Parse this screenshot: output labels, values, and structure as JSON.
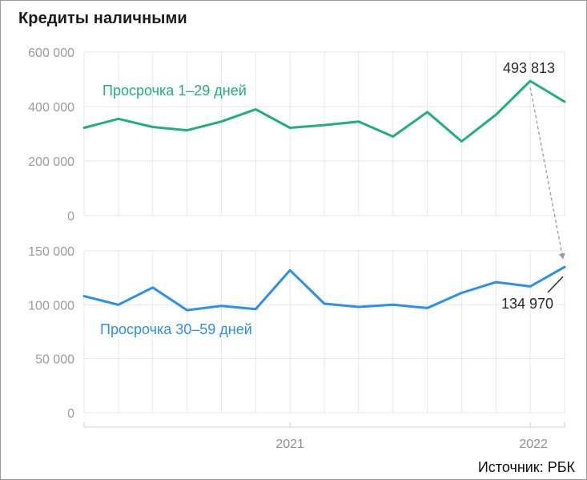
{
  "title": "Кредиты наличными",
  "source": "Источник: РБК",
  "colors": {
    "green": "#1fb07a",
    "blue": "#2b8ff0",
    "grid": "#e6e6e6",
    "ticks": "#9b9b9b"
  },
  "chart_data": [
    {
      "type": "line",
      "x": [
        1,
        2,
        3,
        4,
        5,
        6,
        7,
        8,
        9,
        10,
        11,
        12,
        13,
        14,
        15
      ],
      "series": [
        {
          "name": "Просрочка 1–29 дней",
          "values": [
            322000,
            355000,
            325000,
            313000,
            345000,
            390000,
            322000,
            332000,
            345000,
            290000,
            380000,
            272000,
            370000,
            493813,
            418000
          ]
        }
      ],
      "ylim": [
        0,
        600000
      ],
      "yticks": [
        "0",
        "200 000",
        "400 000",
        "600 000"
      ],
      "annotations": [
        {
          "text": "493 813",
          "point_index": 13
        }
      ],
      "grid": true
    },
    {
      "type": "line",
      "x": [
        1,
        2,
        3,
        4,
        5,
        6,
        7,
        8,
        9,
        10,
        11,
        12,
        13,
        14,
        15
      ],
      "series": [
        {
          "name": "Просрочка 30–59 дней",
          "values": [
            108000,
            100000,
            116000,
            95000,
            99000,
            96000,
            132000,
            101000,
            98000,
            100000,
            97000,
            111000,
            121000,
            117000,
            134970
          ]
        }
      ],
      "ylim": [
        0,
        150000
      ],
      "yticks": [
        "0",
        "50 000",
        "100 000",
        "150 000"
      ],
      "xtick_labels": [
        "2021",
        "2022"
      ],
      "annotations": [
        {
          "text": "134 970",
          "point_index": 14
        }
      ],
      "grid": true
    }
  ]
}
